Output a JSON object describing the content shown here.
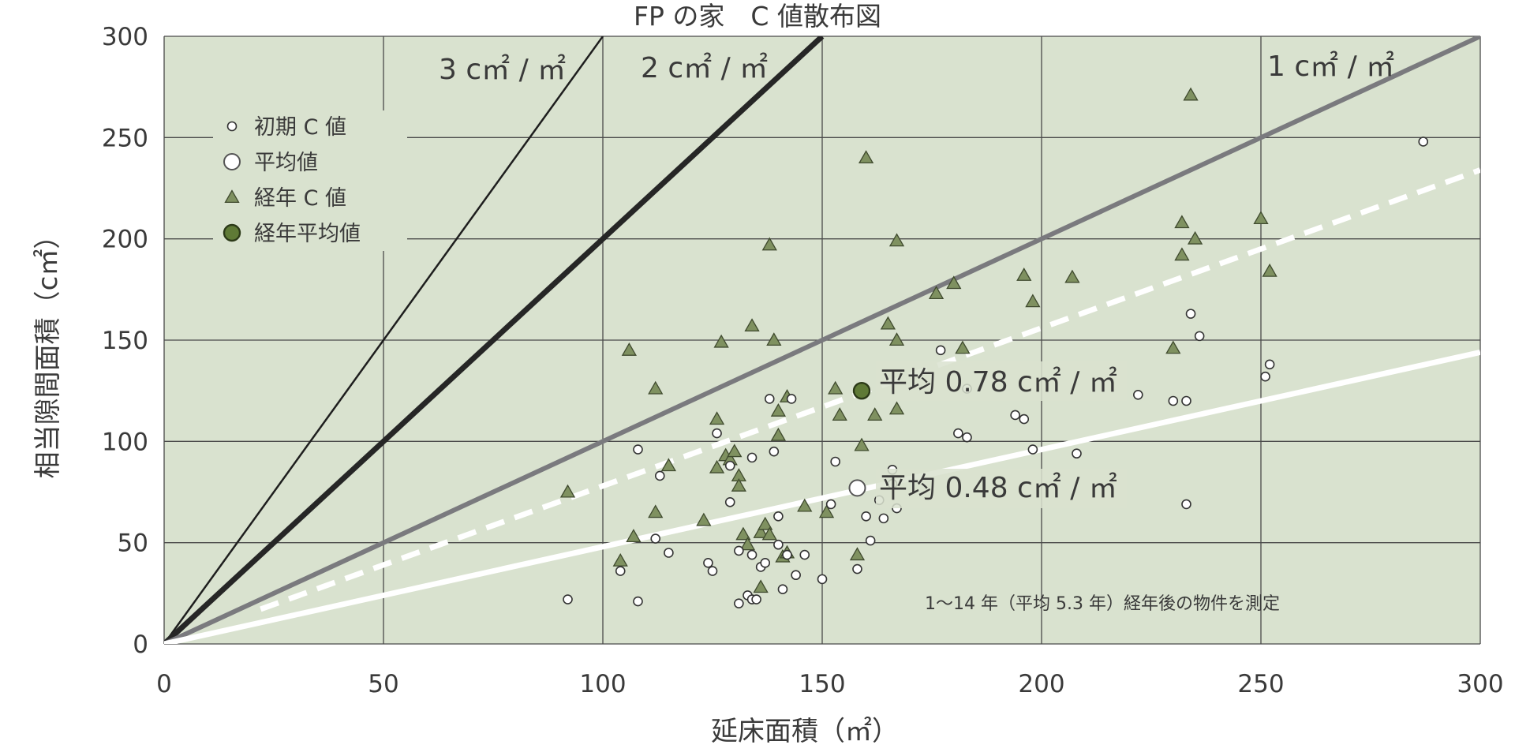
{
  "chart_data": {
    "type": "scatter",
    "title": "FP の家　C 値散布図",
    "xlabel": "延床面積（㎡）",
    "ylabel": "相当隙間面積（c㎡）",
    "xlim": [
      0,
      300
    ],
    "ylim": [
      0,
      300
    ],
    "x_ticks": [
      "0",
      "50",
      "100",
      "150",
      "200",
      "250",
      "300"
    ],
    "y_ticks": [
      "0",
      "50",
      "100",
      "150",
      "200",
      "250",
      "300"
    ],
    "grid": true,
    "legend_position": "top-left",
    "legend": [
      {
        "label": "初期 C 値",
        "marker": "small-circle"
      },
      {
        "label": "平均値",
        "marker": "large-circle"
      },
      {
        "label": "経年 C 値",
        "marker": "triangle"
      },
      {
        "label": "経年平均値",
        "marker": "filled-circle"
      }
    ],
    "reference_lines": [
      {
        "label": "3 c㎡ / ㎡",
        "slope": 3,
        "style": "thin-black"
      },
      {
        "label": "2 c㎡ / ㎡",
        "slope": 2,
        "style": "thick-black"
      },
      {
        "label": "1 c㎡ / ㎡",
        "slope": 1,
        "style": "gray"
      },
      {
        "label": "",
        "slope": 0.78,
        "style": "white-dashed"
      },
      {
        "label": "",
        "slope": 0.48,
        "style": "white"
      }
    ],
    "annotations": [
      {
        "text": "平均 0.78 c㎡ / ㎡",
        "x": 161,
        "y": 125
      },
      {
        "text": "平均 0.48 c㎡ / ㎡",
        "x": 161,
        "y": 77
      },
      {
        "text": "1〜14 年（平均 5.3 年）経年後の物件を測定"
      }
    ],
    "series": [
      {
        "name": "初期 C 値",
        "marker": "small-circle",
        "points": [
          [
            92,
            22
          ],
          [
            108,
            21
          ],
          [
            108,
            96
          ],
          [
            104,
            36
          ],
          [
            112,
            52
          ],
          [
            113,
            83
          ],
          [
            115,
            45
          ],
          [
            124,
            40
          ],
          [
            125,
            36
          ],
          [
            126,
            104
          ],
          [
            129,
            88
          ],
          [
            129,
            70
          ],
          [
            131,
            46
          ],
          [
            131,
            20
          ],
          [
            133,
            24
          ],
          [
            134,
            22
          ],
          [
            134,
            92
          ],
          [
            134,
            44
          ],
          [
            135,
            22
          ],
          [
            136,
            38
          ],
          [
            137,
            40
          ],
          [
            138,
            121
          ],
          [
            139,
            95
          ],
          [
            140,
            49
          ],
          [
            140,
            63
          ],
          [
            141,
            27
          ],
          [
            142,
            44
          ],
          [
            143,
            121
          ],
          [
            144,
            34
          ],
          [
            146,
            44
          ],
          [
            150,
            32
          ],
          [
            152,
            69
          ],
          [
            153,
            90
          ],
          [
            158,
            37
          ],
          [
            160,
            63
          ],
          [
            161,
            51
          ],
          [
            163,
            71
          ],
          [
            164,
            62
          ],
          [
            166,
            86
          ],
          [
            166,
            79
          ],
          [
            167,
            67
          ],
          [
            177,
            145
          ],
          [
            183,
            126
          ],
          [
            181,
            104
          ],
          [
            183,
            102
          ],
          [
            194,
            113
          ],
          [
            196,
            111
          ],
          [
            198,
            96
          ],
          [
            208,
            94
          ],
          [
            222,
            123
          ],
          [
            230,
            120
          ],
          [
            233,
            120
          ],
          [
            233,
            69
          ],
          [
            234,
            163
          ],
          [
            236,
            152
          ],
          [
            251,
            132
          ],
          [
            252,
            138
          ],
          [
            287,
            248
          ]
        ]
      },
      {
        "name": "平均値",
        "marker": "large-circle",
        "points": [
          [
            158,
            77
          ]
        ]
      },
      {
        "name": "経年 C 値",
        "marker": "triangle",
        "points": [
          [
            92,
            75
          ],
          [
            104,
            41
          ],
          [
            106,
            145
          ],
          [
            107,
            53
          ],
          [
            112,
            65
          ],
          [
            112,
            126
          ],
          [
            115,
            88
          ],
          [
            123,
            61
          ],
          [
            126,
            87
          ],
          [
            126,
            111
          ],
          [
            127,
            149
          ],
          [
            128,
            93
          ],
          [
            129,
            91
          ],
          [
            130,
            95
          ],
          [
            131,
            83
          ],
          [
            131,
            78
          ],
          [
            132,
            54
          ],
          [
            133,
            49
          ],
          [
            134,
            157
          ],
          [
            136,
            28
          ],
          [
            136,
            55
          ],
          [
            137,
            59
          ],
          [
            138,
            54
          ],
          [
            138,
            197
          ],
          [
            139,
            150
          ],
          [
            140,
            115
          ],
          [
            140,
            103
          ],
          [
            141,
            43
          ],
          [
            142,
            122
          ],
          [
            142,
            45
          ],
          [
            146,
            68
          ],
          [
            151,
            65
          ],
          [
            153,
            126
          ],
          [
            154,
            113
          ],
          [
            158,
            44
          ],
          [
            159,
            98
          ],
          [
            160,
            240
          ],
          [
            162,
            113
          ],
          [
            165,
            158
          ],
          [
            167,
            199
          ],
          [
            167,
            150
          ],
          [
            167,
            116
          ],
          [
            176,
            173
          ],
          [
            180,
            178
          ],
          [
            182,
            146
          ],
          [
            196,
            182
          ],
          [
            198,
            169
          ],
          [
            207,
            181
          ],
          [
            230,
            146
          ],
          [
            232,
            192
          ],
          [
            232,
            208
          ],
          [
            234,
            271
          ],
          [
            235,
            200
          ],
          [
            250,
            210
          ],
          [
            252,
            184
          ]
        ]
      },
      {
        "name": "経年平均値",
        "marker": "filled-circle",
        "points": [
          [
            159,
            125
          ]
        ]
      }
    ]
  }
}
